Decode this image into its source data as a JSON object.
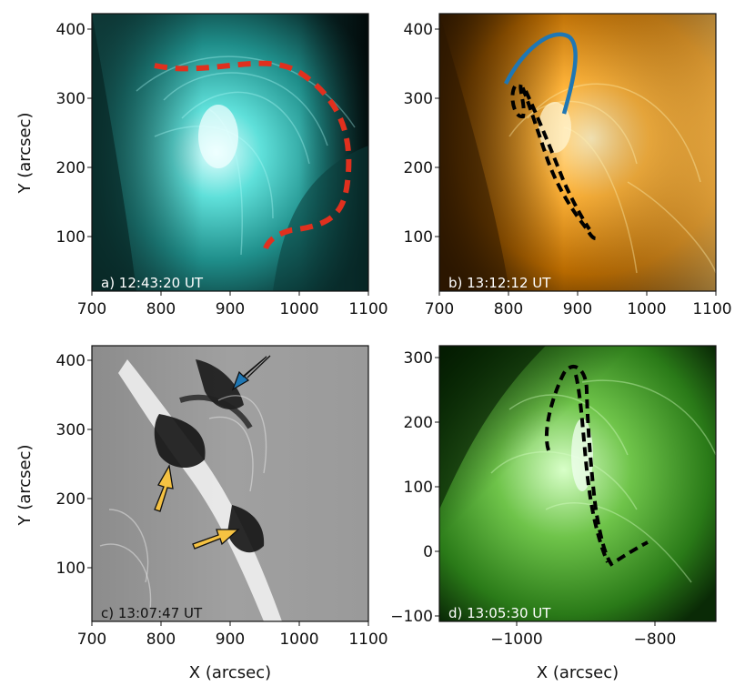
{
  "panels": [
    {
      "id": "a",
      "label": "a) 12:43:20 UT",
      "label_color": "#ffffff",
      "colormap": "cyan",
      "x_ticks": [
        "700",
        "800",
        "900",
        "1000",
        "1100"
      ],
      "y_ticks": [
        "400",
        "300",
        "200",
        "100"
      ],
      "ylabel": "Y (arcsec)",
      "xlabel": "",
      "overlay": "red dashed semicircular loop"
    },
    {
      "id": "b",
      "label": "b) 13:12:12 UT",
      "label_color": "#ffffff",
      "colormap": "orange",
      "x_ticks": [
        "700",
        "800",
        "900",
        "1000",
        "1100"
      ],
      "y_ticks": [
        "400",
        "300",
        "200",
        "100"
      ],
      "ylabel": "",
      "xlabel": "",
      "overlay": "blue solid arch and black dashed filament"
    },
    {
      "id": "c",
      "label": "c) 13:07:47 UT",
      "label_color": "#111111",
      "colormap": "gray difference",
      "x_ticks": [
        "700",
        "800",
        "900",
        "1000",
        "1100"
      ],
      "y_ticks": [
        "400",
        "300",
        "200",
        "100"
      ],
      "ylabel": "Y (arcsec)",
      "xlabel": "X (arcsec)",
      "overlay": "one blue arrow and two yellow arrows"
    },
    {
      "id": "d",
      "label": "d) 13:05:30 UT",
      "label_color": "#ffffff",
      "colormap": "green",
      "x_ticks": [
        "−1000",
        "−800"
      ],
      "y_ticks": [
        "300",
        "200",
        "100",
        "0",
        "−100"
      ],
      "ylabel": "",
      "xlabel": "X (arcsec)",
      "overlay": "black dashed filament"
    }
  ],
  "colors": {
    "panel_a_bg": "#0a2a2a",
    "panel_a_bright": "#7ff5f0",
    "panel_b_bg": "#3a2200",
    "panel_b_bright": "#ffc64a",
    "panel_c_bg": "#9a9a9a",
    "panel_d_bg": "#0d3a0a",
    "panel_d_bright": "#b8f0a0",
    "red_dash": "#e0301e",
    "blue_line": "#1f77b4",
    "yellow_arrow": "#f5c242",
    "black_dash": "#000000"
  }
}
